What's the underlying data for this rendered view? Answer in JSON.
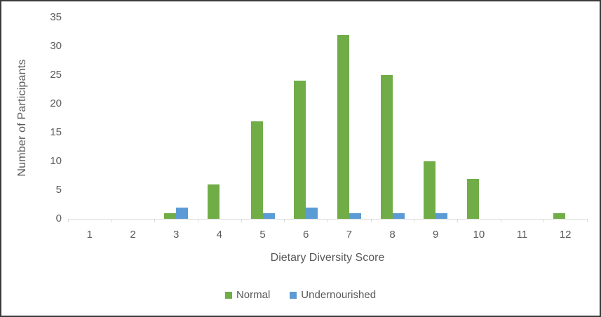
{
  "chart_data": {
    "type": "bar",
    "title": "",
    "xlabel": "Dietary Diversity Score",
    "ylabel": "Number of Participants",
    "categories": [
      "1",
      "2",
      "3",
      "4",
      "5",
      "6",
      "7",
      "8",
      "9",
      "10",
      "11",
      "12"
    ],
    "series": [
      {
        "name": "Normal",
        "color": "#70AD47",
        "values": [
          0,
          0,
          1,
          6,
          17,
          24,
          32,
          25,
          10,
          7,
          0,
          1
        ]
      },
      {
        "name": "Undernourished",
        "color": "#5B9BD5",
        "values": [
          0,
          0,
          2,
          0,
          1,
          2,
          1,
          1,
          1,
          0,
          0,
          0
        ]
      }
    ],
    "ylim": [
      0,
      35
    ],
    "yticks": [
      0,
      5,
      10,
      15,
      20,
      25,
      30,
      35
    ],
    "grid": false,
    "legend_position": "bottom",
    "axis_line_color": "#d9d9d9",
    "text_color": "#595959",
    "frame_border_color": "#3b3b3b",
    "background_color": "#ffffff"
  }
}
